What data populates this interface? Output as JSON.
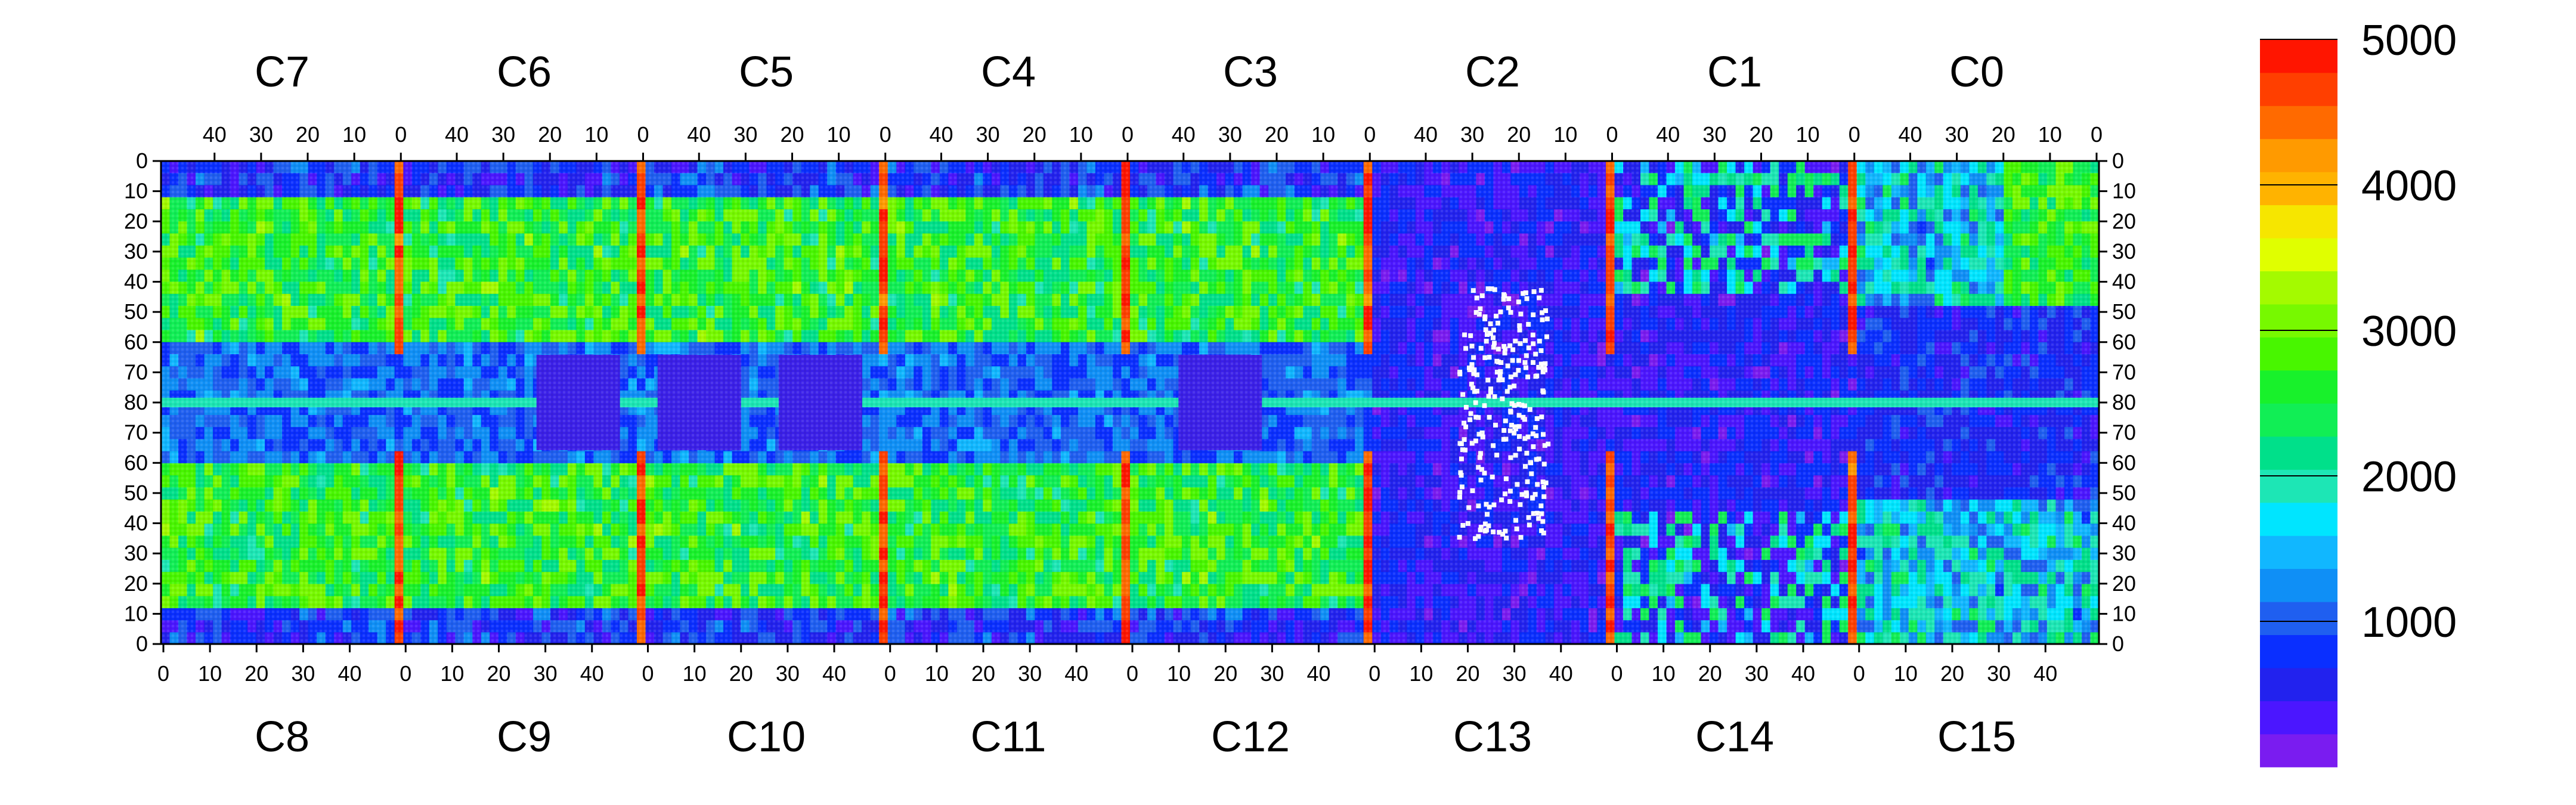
{
  "chart_data": {
    "type": "heatmap",
    "title": "",
    "colorbar": {
      "min": 0,
      "max": 5000,
      "tick_labels": [
        "1000",
        "2000",
        "3000",
        "4000",
        "5000"
      ],
      "tick_values": [
        1000,
        2000,
        3000,
        4000,
        5000
      ],
      "colors": [
        "#7a1cf0",
        "#4b16ff",
        "#2222ee",
        "#0a2fff",
        "#1f5ff0",
        "#0f8ff6",
        "#11b7ff",
        "#00e5ff",
        "#1de6b5",
        "#00e08a",
        "#11ee55",
        "#18f12b",
        "#48f600",
        "#77f900",
        "#a4fa00",
        "#e0ff00",
        "#f6e600",
        "#ffb300",
        "#ff9a00",
        "#ff6a00",
        "#ff3f00",
        "#ff1500"
      ]
    },
    "top_chips": [
      "C7",
      "C6",
      "C5",
      "C4",
      "C3",
      "C2",
      "C1",
      "C0"
    ],
    "bottom_chips": [
      "C8",
      "C9",
      "C10",
      "C11",
      "C12",
      "C13",
      "C14",
      "C15"
    ],
    "top_axis_ticks": [
      "40",
      "30",
      "20",
      "10",
      "0"
    ],
    "bottom_axis_ticks": [
      "0",
      "10",
      "20",
      "30",
      "40"
    ],
    "left_axis_ticks": [
      "0",
      "10",
      "20",
      "30",
      "40",
      "50",
      "60",
      "70",
      "80",
      "70",
      "60",
      "50",
      "40",
      "30",
      "20",
      "10",
      "0"
    ],
    "right_axis_ticks": [
      "0",
      "10",
      "20",
      "30",
      "40",
      "50",
      "60",
      "70",
      "80",
      "70",
      "60",
      "50",
      "40",
      "30",
      "20",
      "10",
      "0"
    ],
    "grid": false,
    "legend": "right"
  }
}
